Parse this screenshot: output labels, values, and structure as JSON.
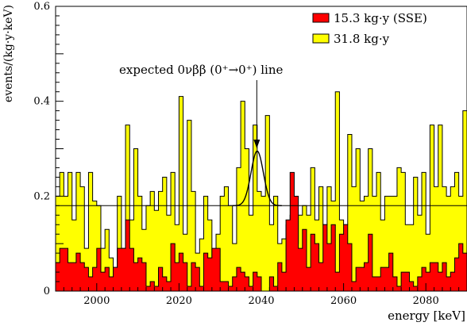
{
  "chart_data": {
    "type": "histogram",
    "xlabel": "energy [keV]",
    "ylabel": "events/(kg·y·keV)",
    "xlim": [
      1990,
      2090
    ],
    "ylim": [
      0,
      0.6
    ],
    "x_ticks": [
      2000,
      2020,
      2040,
      2060,
      2080
    ],
    "y_ticks": [
      0,
      0.2,
      0.4,
      0.6
    ],
    "y_tick_labels": [
      "0",
      "0.2",
      "0.4",
      "0.6"
    ],
    "bin_width": 1,
    "bin_start": 1990,
    "series": [
      {
        "name": "31.8 kg·y",
        "color": "#ffff00",
        "values": [
          0.2,
          0.25,
          0.2,
          0.25,
          0.15,
          0.25,
          0.22,
          0.09,
          0.25,
          0.19,
          0.18,
          0.09,
          0.13,
          0.07,
          0.05,
          0.2,
          0.09,
          0.35,
          0.15,
          0.3,
          0.2,
          0.13,
          0.18,
          0.21,
          0.17,
          0.21,
          0.24,
          0.16,
          0.25,
          0.14,
          0.41,
          0.12,
          0.36,
          0.21,
          0.08,
          0.11,
          0.2,
          0.15,
          0.05,
          0.12,
          0.2,
          0.22,
          0.18,
          0.1,
          0.26,
          0.4,
          0.3,
          0.16,
          0.35,
          0.21,
          0.2,
          0.37,
          0.14,
          0.2,
          0.1,
          0.11,
          0.14,
          0.16,
          0.1,
          0.16,
          0.18,
          0.16,
          0.26,
          0.15,
          0.22,
          0.14,
          0.22,
          0.19,
          0.42,
          0.15,
          0.14,
          0.33,
          0.22,
          0.3,
          0.19,
          0.2,
          0.3,
          0.2,
          0.25,
          0.15,
          0.2,
          0.2,
          0.2,
          0.26,
          0.25,
          0.14,
          0.14,
          0.24,
          0.16,
          0.25,
          0.12,
          0.35,
          0.22,
          0.35,
          0.22,
          0.2,
          0.22,
          0.25,
          0.2,
          0.38
        ]
      },
      {
        "name": "15.3 kg·y (SSE)",
        "color": "#ff0000",
        "values": [
          0.06,
          0.09,
          0.09,
          0.06,
          0.06,
          0.08,
          0.06,
          0.05,
          0.03,
          0.05,
          0.09,
          0.04,
          0.05,
          0.03,
          0.05,
          0.09,
          0.09,
          0.15,
          0.09,
          0.06,
          0.07,
          0.06,
          0.01,
          0.02,
          0.01,
          0.05,
          0.03,
          0.02,
          0.1,
          0.06,
          0.08,
          0.06,
          0.01,
          0.06,
          0.05,
          0.01,
          0.08,
          0.07,
          0.09,
          0.09,
          0.02,
          0.02,
          0.01,
          0.03,
          0.05,
          0.04,
          0.03,
          0.01,
          0.04,
          0.03,
          0.0,
          0.0,
          0.03,
          0.01,
          0.06,
          0.04,
          0.15,
          0.25,
          0.2,
          0.09,
          0.13,
          0.05,
          0.12,
          0.1,
          0.06,
          0.14,
          0.1,
          0.14,
          0.04,
          0.12,
          0.14,
          0.1,
          0.02,
          0.05,
          0.05,
          0.06,
          0.12,
          0.03,
          0.03,
          0.05,
          0.05,
          0.08,
          0.03,
          0.01,
          0.04,
          0.04,
          0.02,
          0.01,
          0.03,
          0.05,
          0.04,
          0.06,
          0.06,
          0.04,
          0.06,
          0.03,
          0.04,
          0.07,
          0.1,
          0.08
        ]
      }
    ],
    "background_level": 0.18,
    "peak": {
      "center": 2039,
      "sigma": 1.5,
      "amplitude": 0.115
    },
    "annotation": "expected 0νββ (0⁺→0⁺) line",
    "legend_position": "top-right",
    "grid": false
  }
}
